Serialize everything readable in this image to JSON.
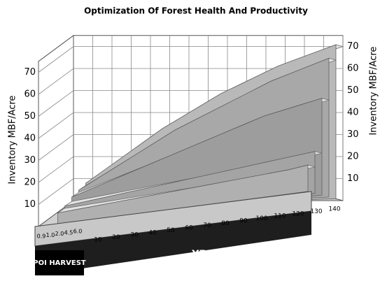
{
  "chart_data": {
    "type": "ribbon3d",
    "title": "Optimization Of Forest Health And Productivity",
    "ylabel": "Inventory MBF/Acre",
    "y2label": "Inventory MBF/Acre",
    "xlabel": "YEARS",
    "legend_title": "POI HARVEST",
    "x": [
      10,
      20,
      30,
      40,
      50,
      60,
      70,
      80,
      90,
      100,
      110,
      120,
      130,
      140
    ],
    "xlim": [
      0,
      140
    ],
    "ylim": [
      0,
      75
    ],
    "yticks": [
      10,
      20,
      30,
      40,
      50,
      60,
      70
    ],
    "grid": true,
    "series": [
      {
        "name": "0.9",
        "color": "#b9b9b9",
        "values": [
          10,
          16,
          22,
          28,
          34,
          39,
          44,
          49,
          53,
          57,
          61,
          64,
          67,
          70
        ]
      },
      {
        "name": "1.0",
        "color": "#a8a8a8",
        "values": [
          9,
          14,
          19,
          24,
          29,
          34,
          38,
          42,
          46,
          50,
          54,
          57,
          60,
          63
        ]
      },
      {
        "name": "2.0",
        "color": "#9d9d9d",
        "values": [
          8,
          11,
          14,
          17,
          20,
          23,
          26,
          29,
          32,
          35,
          38,
          40,
          42,
          44
        ]
      },
      {
        "name": "4.5",
        "color": "#a4a4a4",
        "values": [
          6,
          7,
          8,
          9,
          10,
          11,
          12,
          13,
          14,
          15,
          16,
          17,
          18,
          19
        ]
      },
      {
        "name": "6.0",
        "color": "#b0b0b0",
        "values": [
          5,
          5.5,
          6,
          6.5,
          7,
          7.5,
          8,
          8.5,
          9,
          9.5,
          10,
          10.5,
          11,
          12
        ]
      }
    ]
  }
}
